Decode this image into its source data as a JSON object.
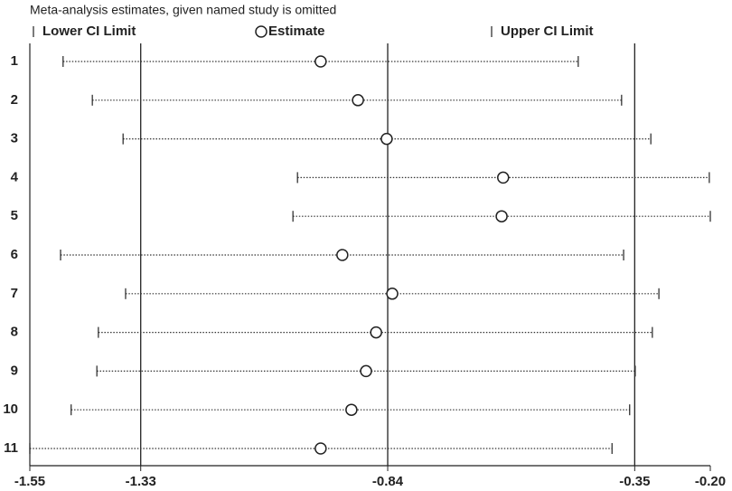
{
  "chart_data": {
    "type": "forest",
    "title": "Meta-analysis estimates, given named study is omitted",
    "categories": [
      "1",
      "2",
      "3",
      "4",
      "5",
      "6",
      "7",
      "8",
      "9",
      "10",
      "11"
    ],
    "series": [
      {
        "name": "Lower CI Limit",
        "color": "#222222",
        "values": [
          -1.484,
          -1.426,
          -1.365,
          -1.019,
          -1.028,
          -1.489,
          -1.36,
          -1.414,
          -1.417,
          -1.468,
          -1.55
        ]
      },
      {
        "name": "Estimate",
        "color": "#222222",
        "values": [
          -0.973,
          -0.899,
          -0.842,
          -0.611,
          -0.614,
          -0.93,
          -0.831,
          -0.863,
          -0.883,
          -0.912,
          -0.973
        ]
      },
      {
        "name": "Upper CI Limit",
        "color": "#222222",
        "values": [
          -0.462,
          -0.376,
          -0.318,
          -0.202,
          -0.2,
          -0.372,
          -0.302,
          -0.315,
          -0.349,
          -0.36,
          -0.395
        ]
      }
    ],
    "reference_lines": [
      -1.33,
      -0.84,
      -0.35
    ],
    "xlim": [
      -1.55,
      -0.2
    ],
    "xticks": [
      -1.55,
      -1.33,
      -0.84,
      -0.35,
      {
        "value": -0.2,
        "label": "-0.20"
      }
    ]
  }
}
